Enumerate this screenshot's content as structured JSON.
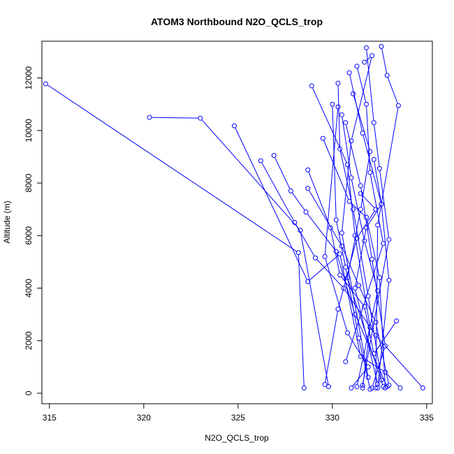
{
  "chart_data": {
    "type": "line",
    "title": "ATOM3 Northbound N2O_QCLS_trop",
    "xlabel": "N2O_QCLS_trop",
    "ylabel": "Altitude (m)",
    "xlim": [
      314.6,
      335.3
    ],
    "ylim": [
      -400,
      13400
    ],
    "xticks": [
      315,
      320,
      325,
      330,
      335
    ],
    "yticks": [
      0,
      2000,
      4000,
      6000,
      8000,
      10000,
      12000
    ],
    "grid": false,
    "legend": "none",
    "colors": {
      "series": "#0000ff",
      "axes": "#000000",
      "background": "#ffffff"
    },
    "series": [
      {
        "x": [
          314.8,
          328.2,
          328.5
        ],
        "y": [
          11780,
          5350,
          200
        ]
      },
      {
        "x": [
          320.3,
          323.0,
          328.3,
          329.8
        ],
        "y": [
          10500,
          10470,
          6200,
          250
        ]
      },
      {
        "x": [
          324.8,
          328.7,
          330.4,
          331.5,
          332.8,
          333.6
        ],
        "y": [
          10180,
          4250,
          5300,
          1400,
          800,
          200
        ]
      },
      {
        "x": [
          326.2,
          328.0,
          329.1,
          330.6,
          332.3,
          334.8
        ],
        "y": [
          8850,
          6500,
          5150,
          4000,
          2200,
          200
        ]
      },
      {
        "x": [
          326.9,
          327.8,
          328.6,
          330.2,
          331.2,
          332.9
        ],
        "y": [
          9050,
          7700,
          6900,
          5400,
          3000,
          250
        ]
      },
      {
        "x": [
          328.7,
          329.9,
          330.4,
          331.7,
          332.2,
          333.4
        ],
        "y": [
          8500,
          6300,
          4500,
          3300,
          1500,
          2750
        ]
      },
      {
        "x": [
          328.7,
          330.5,
          331.4,
          332.3,
          333.0
        ],
        "y": [
          7800,
          5600,
          4100,
          2700,
          300
        ]
      },
      {
        "x": [
          328.9,
          330.8,
          331.2,
          332.0,
          331.6
        ],
        "y": [
          11700,
          8700,
          6000,
          2500,
          200
        ]
      },
      {
        "x": [
          329.5,
          330.9,
          331.8,
          332.5,
          332.8
        ],
        "y": [
          9700,
          7300,
          6700,
          4400,
          200
        ]
      },
      {
        "x": [
          330.0,
          330.2,
          330.7,
          331.4,
          332.0
        ],
        "y": [
          11000,
          6600,
          4800,
          2100,
          150
        ]
      },
      {
        "x": [
          330.3,
          330.4,
          331.1,
          331.9,
          332.6
        ],
        "y": [
          11800,
          9300,
          7000,
          3700,
          500
        ]
      },
      {
        "x": [
          330.5,
          331.0,
          331.7,
          332.4,
          331.3
        ],
        "y": [
          10600,
          8200,
          5800,
          3900,
          250
        ]
      },
      {
        "x": [
          330.7,
          331.5,
          332.1,
          332.8,
          332.1
        ],
        "y": [
          10300,
          7900,
          5100,
          1800,
          200
        ]
      },
      {
        "x": [
          330.9,
          331.6,
          332.6,
          333.0,
          332.4
        ],
        "y": [
          12200,
          9900,
          7200,
          4300,
          200
        ]
      },
      {
        "x": [
          331.3,
          331.8,
          332.0,
          332.7,
          330.7
        ],
        "y": [
          12450,
          11000,
          8400,
          5700,
          1200
        ]
      },
      {
        "x": [
          331.8,
          332.2,
          332.5,
          333.0,
          331.6
        ],
        "y": [
          13150,
          10300,
          8550,
          5850,
          300
        ]
      },
      {
        "x": [
          332.6,
          332.9,
          333.5,
          332.4,
          332.3
        ],
        "y": [
          13200,
          12100,
          10950,
          6400,
          200
        ]
      },
      {
        "x": [
          331.7,
          332.1,
          331.0,
          330.5,
          331.9
        ],
        "y": [
          12600,
          12850,
          9600,
          6100,
          600
        ]
      },
      {
        "x": [
          331.1,
          332.0,
          331.5,
          330.8,
          332.7
        ],
        "y": [
          11400,
          9200,
          7000,
          4400,
          250
        ]
      },
      {
        "x": [
          330.3,
          329.6,
          330.8,
          331.9,
          331.0
        ],
        "y": [
          10900,
          5200,
          2300,
          1000,
          200
        ]
      },
      {
        "x": [
          331.5,
          332.3,
          331.3,
          330.3,
          329.6
        ],
        "y": [
          7600,
          7000,
          5900,
          3200,
          330
        ]
      },
      {
        "x": [
          332.2,
          332.6,
          331.8,
          331.2,
          332.4
        ],
        "y": [
          8900,
          7200,
          6300,
          4000,
          350
        ]
      }
    ]
  }
}
